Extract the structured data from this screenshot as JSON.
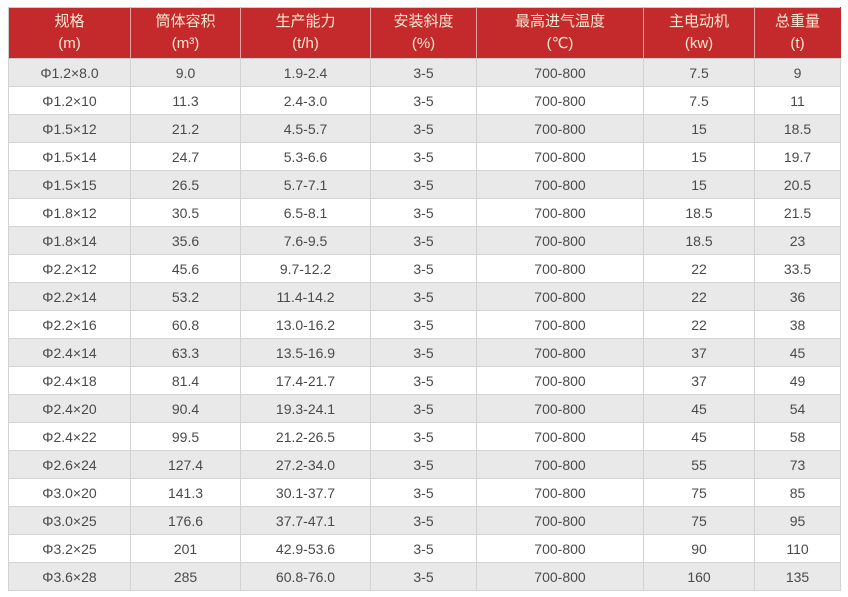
{
  "colors": {
    "header_background": "#c42a2b",
    "header_text": "#fae8d3",
    "row_striped": "#e9e9e9",
    "row_plain": "#ffffff",
    "body_text": "#4a4a4a",
    "grid_border": "#d2d2d2"
  },
  "chart_data": {
    "type": "table",
    "columns": [
      {
        "label": "规格",
        "unit": "(m)"
      },
      {
        "label": "筒体容积",
        "unit": "(m³)"
      },
      {
        "label": "生产能力",
        "unit": "(t/h)"
      },
      {
        "label": "安装斜度",
        "unit": "(%)"
      },
      {
        "label": "最高进气温度",
        "unit": "(℃)"
      },
      {
        "label": "主电动机",
        "unit": "(kw)"
      },
      {
        "label": "总重量",
        "unit": "(t)"
      }
    ],
    "rows": [
      [
        "Φ1.2×8.0",
        "9.0",
        "1.9-2.4",
        "3-5",
        "700-800",
        "7.5",
        "9"
      ],
      [
        "Φ1.2×10",
        "11.3",
        "2.4-3.0",
        "3-5",
        "700-800",
        "7.5",
        "11"
      ],
      [
        "Φ1.5×12",
        "21.2",
        "4.5-5.7",
        "3-5",
        "700-800",
        "15",
        "18.5"
      ],
      [
        "Φ1.5×14",
        "24.7",
        "5.3-6.6",
        "3-5",
        "700-800",
        "15",
        "19.7"
      ],
      [
        "Φ1.5×15",
        "26.5",
        "5.7-7.1",
        "3-5",
        "700-800",
        "15",
        "20.5"
      ],
      [
        "Φ1.8×12",
        "30.5",
        "6.5-8.1",
        "3-5",
        "700-800",
        "18.5",
        "21.5"
      ],
      [
        "Φ1.8×14",
        "35.6",
        "7.6-9.5",
        "3-5",
        "700-800",
        "18.5",
        "23"
      ],
      [
        "Φ2.2×12",
        "45.6",
        "9.7-12.2",
        "3-5",
        "700-800",
        "22",
        "33.5"
      ],
      [
        "Φ2.2×14",
        "53.2",
        "11.4-14.2",
        "3-5",
        "700-800",
        "22",
        "36"
      ],
      [
        "Φ2.2×16",
        "60.8",
        "13.0-16.2",
        "3-5",
        "700-800",
        "22",
        "38"
      ],
      [
        "Φ2.4×14",
        "63.3",
        "13.5-16.9",
        "3-5",
        "700-800",
        "37",
        "45"
      ],
      [
        "Φ2.4×18",
        "81.4",
        "17.4-21.7",
        "3-5",
        "700-800",
        "37",
        "49"
      ],
      [
        "Φ2.4×20",
        "90.4",
        "19.3-24.1",
        "3-5",
        "700-800",
        "45",
        "54"
      ],
      [
        "Φ2.4×22",
        "99.5",
        "21.2-26.5",
        "3-5",
        "700-800",
        "45",
        "58"
      ],
      [
        "Φ2.6×24",
        "127.4",
        "27.2-34.0",
        "3-5",
        "700-800",
        "55",
        "73"
      ],
      [
        "Φ3.0×20",
        "141.3",
        "30.1-37.7",
        "3-5",
        "700-800",
        "75",
        "85"
      ],
      [
        "Φ3.0×25",
        "176.6",
        "37.7-47.1",
        "3-5",
        "700-800",
        "75",
        "95"
      ],
      [
        "Φ3.2×25",
        "201",
        "42.9-53.6",
        "3-5",
        "700-800",
        "90",
        "110"
      ],
      [
        "Φ3.6×28",
        "285",
        "60.8-76.0",
        "3-5",
        "700-800",
        "160",
        "135"
      ]
    ]
  }
}
